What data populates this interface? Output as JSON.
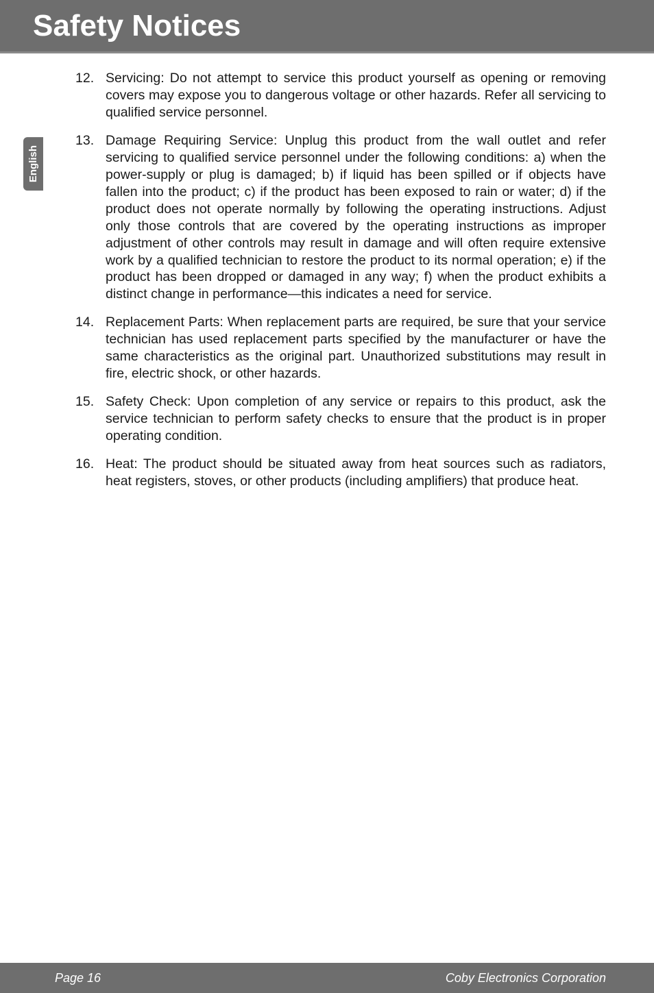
{
  "header": {
    "title": "Safety Notices"
  },
  "sideTab": {
    "label": "English"
  },
  "items": [
    {
      "number": "12.",
      "text": "Servicing: Do not attempt to service this product yourself as opening or removing covers may expose you to dangerous voltage or other hazards. Refer all servicing to qualified service personnel."
    },
    {
      "number": "13.",
      "text": "Damage Requiring Service: Unplug this product from the wall outlet and refer servicing to qualified service personnel under the following conditions: a) when the power-supply or plug is damaged; b) if liquid has been spilled or if objects have fallen into the product; c) if the product has been exposed to rain or water; d) if the product does not operate normally by following the operating instructions. Adjust only those controls that are covered by the operating instructions as improper adjustment of other controls may result in damage and will often require extensive work by a qualified technician to restore the product to its normal operation; e) if the product has been dropped or damaged in any way; f) when the product exhibits a distinct change in performance—this indicates a need for service."
    },
    {
      "number": "14.",
      "text": "Replacement Parts: When replacement parts are required, be sure that your service technician has used replacement parts specified by the manufacturer or have the same characteristics as the original part. Unauthorized substitutions may result in fire, electric shock, or other hazards."
    },
    {
      "number": "15.",
      "text": "Safety Check: Upon completion of any service or repairs to this product, ask the service technician to perform safety checks to ensure that the product is in proper operating condition."
    },
    {
      "number": "16.",
      "text": "Heat: The product should be situated away from heat sources such as radiators, heat registers, stoves, or other products (including amplifiers) that produce heat."
    }
  ],
  "footer": {
    "pageLabel": "Page 16",
    "company": "Coby Electronics Corporation"
  },
  "colors": {
    "headerBg": "#6e6e6e",
    "headerText": "#ffffff",
    "bodyText": "#1a1a1a",
    "footerBg": "#6e6e6e",
    "footerText": "#ffffff"
  }
}
